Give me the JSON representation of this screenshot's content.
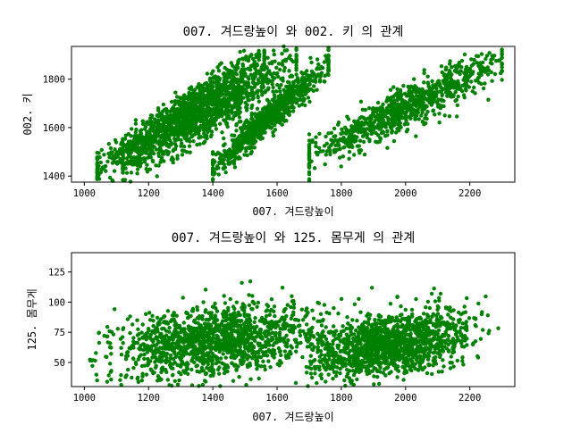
{
  "theme": {
    "point_color": "#008000",
    "axes_color": "#000000",
    "background": "#ffffff"
  },
  "chart_data": [
    {
      "type": "scatter",
      "title": "007. 겨드랑높이  와 002. 키 의 관계",
      "xlabel": "007. 겨드랑높이",
      "ylabel": "002. 키",
      "xlim": [
        960,
        2340
      ],
      "ylim": [
        1375,
        1935
      ],
      "xticks": [
        1000,
        1200,
        1400,
        1600,
        1800,
        2000,
        2200
      ],
      "yticks": [
        1400,
        1600,
        1800
      ],
      "grid": false,
      "point_color": "#008000",
      "clusters": [
        {
          "x_range": [
            1040,
            1560
          ],
          "y_center_at_x": [
            [
              1040,
              1430
            ],
            [
              1560,
              1885
            ]
          ],
          "spread": 40
        },
        {
          "x_range": [
            1120,
            1660
          ],
          "y_center_at_x": [
            [
              1120,
              1440
            ],
            [
              1660,
              1880
            ]
          ],
          "spread": 48
        },
        {
          "x_range": [
            1400,
            1760
          ],
          "y_center_at_x": [
            [
              1400,
              1440
            ],
            [
              1760,
              1860
            ]
          ],
          "spread": 32
        },
        {
          "x_range": [
            1700,
            2300
          ],
          "y_center_at_x": [
            [
              1700,
              1480
            ],
            [
              2300,
              1880
            ]
          ],
          "spread": 40
        }
      ]
    },
    {
      "type": "scatter",
      "title": "007. 겨드랑높이  와 125. 몸무게 의 관계",
      "xlabel": "007. 겨드랑높이",
      "ylabel": "125. 몸무게",
      "xlim": [
        960,
        2340
      ],
      "ylim": [
        30,
        141
      ],
      "xticks": [
        1000,
        1200,
        1400,
        1600,
        1800,
        2000,
        2200
      ],
      "yticks": [
        50,
        75,
        100,
        125
      ],
      "grid": false,
      "point_color": "#008000",
      "clusters": [
        {
          "x_range": [
            1010,
            1780
          ],
          "x_center": 1400,
          "y_center": 68,
          "y_spread": 14,
          "trend": 0.025
        },
        {
          "x_range": [
            1690,
            2300
          ],
          "x_center": 1950,
          "y_center": 65,
          "y_spread": 13,
          "trend": 0.04
        }
      ]
    }
  ]
}
